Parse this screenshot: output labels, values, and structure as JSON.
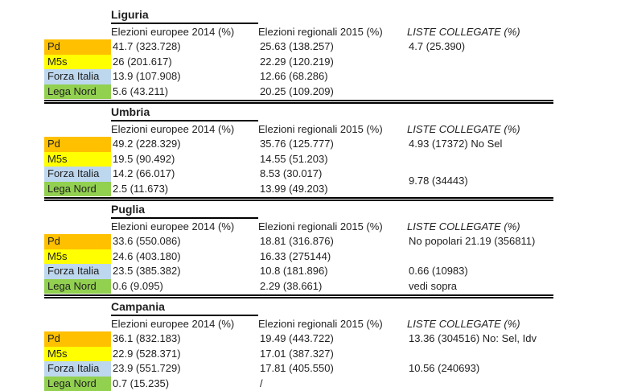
{
  "page": {
    "background_color": "#ffffff",
    "text_color": "#1f1f1f",
    "line_color": "#000000"
  },
  "columns": {
    "col1": "Elezioni europee 2014 (%)",
    "col2": "Elezioni regionali 2015 (%)",
    "col3": "LISTE COLLEGATE (%)"
  },
  "parties": [
    {
      "name": "Pd",
      "color": "#FFC000"
    },
    {
      "name": "M5s",
      "color": "#FFFF00"
    },
    {
      "name": "Forza Italia",
      "color": "#BDD7EE"
    },
    {
      "name": "Lega Nord",
      "color": "#92D050"
    }
  ],
  "sections": [
    {
      "region": "Liguria",
      "rows": [
        {
          "party": "Pd",
          "europee": "41.7 (323.728)",
          "regionali": "25.63 (138.257)",
          "liste": "4.7 (25.390)"
        },
        {
          "party": "M5s",
          "europee": "26 (201.617)",
          "regionali": "22.29 (120.219)",
          "liste": ""
        },
        {
          "party": "Forza Italia",
          "europee": "13.9 (107.908)",
          "regionali": "12.66 (68.286)",
          "liste": ""
        },
        {
          "party": "Lega Nord",
          "europee": "5.6 (43.211)",
          "regionali": "20.25 (109.209)",
          "liste": ""
        }
      ]
    },
    {
      "region": "Umbria",
      "rows": [
        {
          "party": "Pd",
          "europee": "49.2 (228.329)",
          "regionali": "35.76 (125.777)",
          "liste": "4.93 (17372) No Sel"
        },
        {
          "party": "M5s",
          "europee": "19.5 (90.492)",
          "regionali": "14.55 (51.203)",
          "liste": ""
        },
        {
          "party": "Forza Italia",
          "europee": "14.2 (66.017)",
          "regionali": "8.53 (30.017)",
          "liste": "9.78 (34443)",
          "liste_rowspan": 2
        },
        {
          "party": "Lega Nord",
          "europee": "2.5 (11.673)",
          "regionali": "13.99 (49.203)",
          "liste_merged": true
        }
      ]
    },
    {
      "region": "Puglia",
      "rows": [
        {
          "party": "Pd",
          "europee": "33.6 (550.086)",
          "regionali": "18.81 (316.876)",
          "liste": "No popolari 21.19 (356811)"
        },
        {
          "party": "M5s",
          "europee": "24.6 (403.180)",
          "regionali": "16.33 (275144)",
          "liste": ""
        },
        {
          "party": "Forza Italia",
          "europee": "23.5 (385.382)",
          "regionali": "10.8 (181.896)",
          "liste": "0.66 (10983)"
        },
        {
          "party": "Lega Nord",
          "europee": "0.6 (9.095)",
          "regionali": "2.29 (38.661)",
          "liste": "vedi sopra"
        }
      ]
    },
    {
      "region": "Campania",
      "rows": [
        {
          "party": "Pd",
          "europee": "36.1 (832.183)",
          "regionali": "19.49 (443.722)",
          "liste": "13.36 (304516) No: Sel, Idv"
        },
        {
          "party": "M5s",
          "europee": "22.9 (528.371)",
          "regionali": "17.01 (387.327)",
          "liste": ""
        },
        {
          "party": "Forza Italia",
          "europee": "23.9 (551.729)",
          "regionali": "17.81 (405.550)",
          "liste": "10.56 (240693)"
        },
        {
          "party": "Lega Nord",
          "europee": "0.7 (15.235)",
          "regionali": "/",
          "liste": ""
        }
      ]
    }
  ]
}
